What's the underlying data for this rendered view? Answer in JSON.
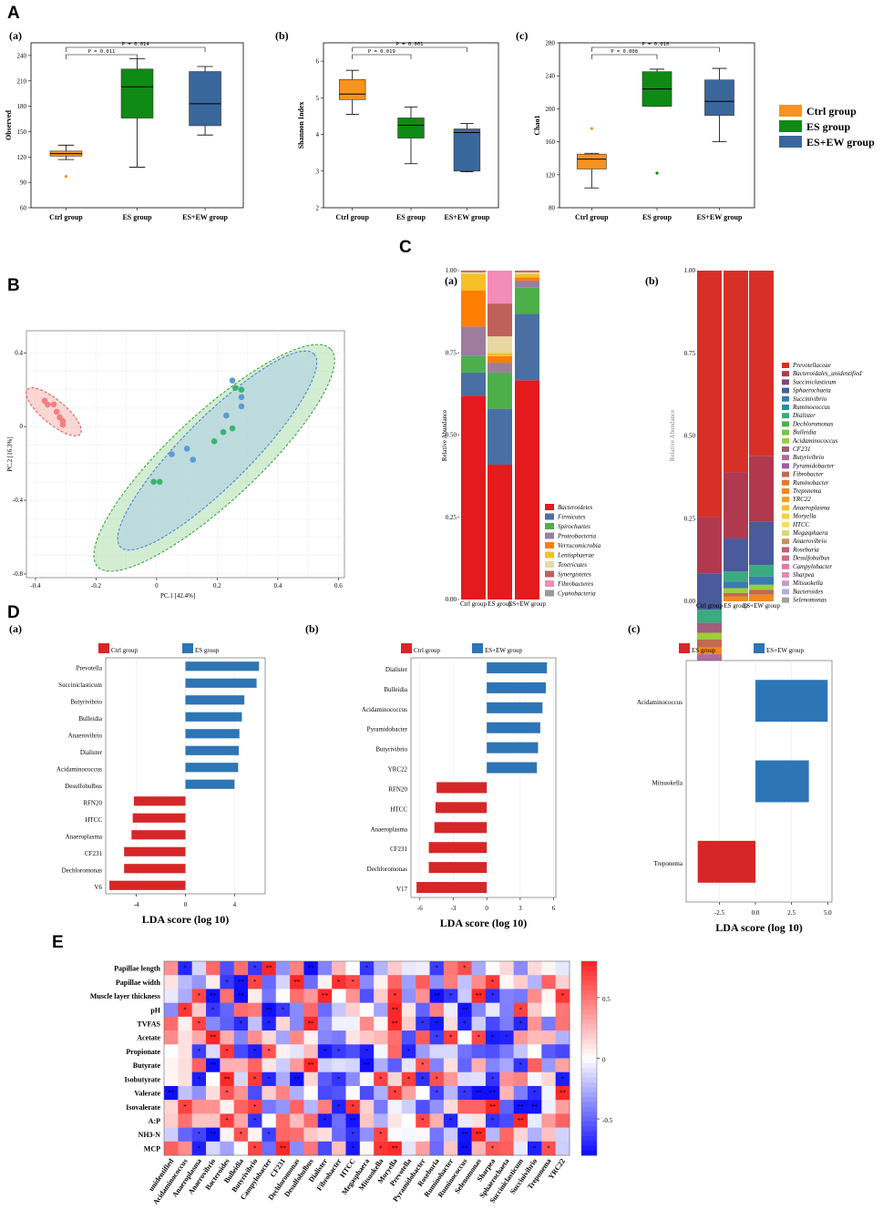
{
  "panels": {
    "A": "A",
    "B": "B",
    "C": "C",
    "D": "D",
    "E": "E"
  },
  "colors": {
    "ctrl": "#f7931e",
    "es": "#0f8a14",
    "esew": "#3a679b",
    "red": "#d62728",
    "blue": "#2e75b6"
  },
  "chart_data": [
    {
      "id": "A-a",
      "type": "box",
      "subtitle": "(a)",
      "ylabel": "Observed",
      "ylim": [
        60,
        255
      ],
      "yticks": [
        60,
        90,
        120,
        150,
        180,
        210,
        240
      ],
      "categories": [
        "Ctrl group",
        "ES group",
        "ES+EW group"
      ],
      "boxes": [
        {
          "min": 117,
          "q1": 121,
          "median": 124,
          "q3": 127,
          "max": 134,
          "outliers": [
            97
          ]
        },
        {
          "min": 108,
          "q1": 166,
          "median": 203,
          "q3": 224,
          "max": 236,
          "outliers": []
        },
        {
          "min": 146,
          "q1": 157,
          "median": 183,
          "q3": 221,
          "max": 227,
          "outliers": []
        }
      ],
      "pvalues": [
        {
          "label": "P = 0.011",
          "from": 0,
          "to": 1
        },
        {
          "label": "P = 0.014",
          "from": 0,
          "to": 2
        }
      ]
    },
    {
      "id": "A-b",
      "type": "box",
      "subtitle": "(b)",
      "ylabel": "Shannon Index",
      "ylim": [
        2,
        6.5
      ],
      "yticks": [
        2,
        3,
        4,
        5,
        6
      ],
      "categories": [
        "Ctrl group",
        "ES group",
        "ES+EW group"
      ],
      "boxes": [
        {
          "min": 4.55,
          "q1": 4.95,
          "median": 5.1,
          "q3": 5.5,
          "max": 5.75,
          "outliers": []
        },
        {
          "min": 3.2,
          "q1": 3.9,
          "median": 4.25,
          "q3": 4.45,
          "max": 4.75,
          "outliers": []
        },
        {
          "min": 2.98,
          "q1": 3.0,
          "median": 4.05,
          "q3": 4.15,
          "max": 4.3,
          "outliers": []
        }
      ],
      "pvalues": [
        {
          "label": "P = 0.019",
          "from": 0,
          "to": 1
        },
        {
          "label": "P = 0.001",
          "from": 0,
          "to": 2
        }
      ]
    },
    {
      "id": "A-c",
      "type": "box",
      "subtitle": "(c)",
      "ylabel": "Chao1",
      "ylim": [
        80,
        280
      ],
      "yticks": [
        80,
        120,
        160,
        200,
        240,
        280
      ],
      "categories": [
        "Ctrl group",
        "ES group",
        "ES+EW group"
      ],
      "boxes": [
        {
          "min": 104,
          "q1": 127,
          "median": 139,
          "q3": 145,
          "max": 146,
          "outliers": [
            176
          ]
        },
        {
          "min": 203,
          "q1": 203,
          "median": 224,
          "q3": 245,
          "max": 248,
          "outliers": [
            122
          ]
        },
        {
          "min": 160,
          "q1": 192,
          "median": 209,
          "q3": 235,
          "max": 249,
          "outliers": []
        }
      ],
      "pvalues": [
        {
          "label": "P = 0.008",
          "from": 0,
          "to": 1
        },
        {
          "label": "P = 0.010",
          "from": 0,
          "to": 2
        }
      ]
    },
    {
      "id": "A-legend",
      "type": "legend",
      "entries": [
        "Ctrl group",
        "ES group",
        "ES+EW group"
      ]
    },
    {
      "id": "B",
      "type": "scatter",
      "xlabel": "PC.1  [42.4%]",
      "ylabel": "PC.2  [16.3%]",
      "xlim": [
        -0.43,
        0.62
      ],
      "ylim": [
        -0.82,
        0.52
      ],
      "xticks": [
        -0.4,
        -0.2,
        0,
        0.2,
        0.4,
        0.6
      ],
      "yticks": [
        -0.8,
        -0.4,
        0,
        0.4
      ],
      "series": [
        {
          "name": "Ctrl group",
          "color": "#f08080",
          "points": [
            [
              -0.37,
              0.14
            ],
            [
              -0.36,
              0.12
            ],
            [
              -0.34,
              0.12
            ],
            [
              -0.33,
              0.08
            ],
            [
              -0.32,
              0.05
            ],
            [
              -0.31,
              0.03
            ],
            [
              -0.31,
              0.01
            ]
          ]
        },
        {
          "name": "ES group",
          "color": "#3cb371",
          "points": [
            [
              -0.01,
              -0.3
            ],
            [
              0.01,
              -0.3
            ],
            [
              0.19,
              -0.08
            ],
            [
              0.22,
              -0.03
            ],
            [
              0.25,
              -0.01
            ],
            [
              0.26,
              0.21
            ],
            [
              0.28,
              0.2
            ]
          ]
        },
        {
          "name": "ES+EW group",
          "color": "#5b9bd5",
          "points": [
            [
              0.05,
              -0.15
            ],
            [
              0.1,
              -0.12
            ],
            [
              0.12,
              -0.18
            ],
            [
              0.23,
              0.06
            ],
            [
              0.25,
              0.25
            ],
            [
              0.28,
              0.16
            ],
            [
              0.28,
              0.11
            ]
          ]
        }
      ]
    },
    {
      "id": "C-a",
      "type": "stacked-bar",
      "subtitle": "(a)",
      "ylabel": "Relative Abundance",
      "yticks": [
        "0.00",
        "0.25",
        "0.50",
        "0.75",
        "1.00"
      ],
      "categories": [
        "Ctrl group",
        "ES group",
        "ES+EW group"
      ],
      "legend": [
        "Bacteroidetes",
        "Firmicutes",
        "Spirochaetes",
        "Proteobacteria",
        "Verrucomicrobia",
        "Lentisphaerae",
        "Tenericutes",
        "Synergistetes",
        "Fibrobacteres",
        "Cyanobacteria"
      ],
      "colors": [
        "#e41a1c",
        "#4a6fa5",
        "#4daf4a",
        "#9e7c9e",
        "#ff7f00",
        "#f6c026",
        "#e8d8a0",
        "#c0605a",
        "#f48cba",
        "#999999"
      ],
      "series": [
        [
          0.62,
          0.41,
          0.66
        ],
        [
          0.07,
          0.17,
          0.2
        ],
        [
          0.05,
          0.11,
          0.08
        ],
        [
          0.09,
          0.03,
          0.02
        ],
        [
          0.11,
          0.02,
          0.01
        ],
        [
          0.05,
          0.01,
          0.01
        ],
        [
          0.005,
          0.05,
          0.005
        ],
        [
          0.005,
          0.1,
          0.005
        ],
        [
          0.0,
          0.1,
          0.0
        ],
        [
          0.0,
          0.0,
          0.0
        ]
      ]
    },
    {
      "id": "C-b",
      "type": "stacked-bar",
      "subtitle": "(b)",
      "ylabel": "Relative Abundance",
      "yticks": [
        "0.00",
        "0.25",
        "0.50",
        "0.75",
        "1.00"
      ],
      "categories": [
        "Ctrl group",
        "ES group",
        "ES+EW group"
      ],
      "legend": [
        "Prevotellaceae",
        "Bacteroidales_unidentified",
        "Succiniclasticum",
        "Sphaerochaeta",
        "Succinivibrio",
        "Ruminococcus",
        "Dialister",
        "Dechloromonas",
        "Bulleidia",
        "Acidaminococcus",
        "CF231",
        "Butyrivibrio",
        "Pyramidobacter",
        "Fibrobacter",
        "Ruminobacter",
        "Treponema",
        "YRC22",
        "Anaeroplasma",
        "Moryella",
        "HTCC",
        "Megasphaera",
        "Anaerovibrio",
        "Roseburia",
        "Desulfobulbus",
        "Campylobacter",
        "Sharpea",
        "Mitsuokella",
        "Bacteroides",
        "Selenomonas"
      ],
      "colors": [
        "#d73027",
        "#b0394f",
        "#7a4a7a",
        "#4a5a9a",
        "#3a7ab0",
        "#2a90a0",
        "#3aaa80",
        "#4daf4a",
        "#7bc24a",
        "#9bcf3a",
        "#a0607a",
        "#b06aa0",
        "#9a5aa0",
        "#c06a50",
        "#e07a30",
        "#f08a20",
        "#f0a020",
        "#f5c030",
        "#f5d040",
        "#f0e060",
        "#d8d870",
        "#c89060",
        "#c06070",
        "#d06a8a",
        "#e07aa0",
        "#e08ab0",
        "#c0a0c0",
        "#b0b0d0",
        "#a0a0a0"
      ],
      "series": [
        [
          0.0,
          0.0,
          0.0
        ]
      ],
      "segments": {
        "Ctrl group": [
          [
            0.745,
            "#d73027"
          ],
          [
            0.17,
            "#b0394f"
          ],
          [
            0.11,
            "#4a5a9a"
          ],
          [
            0.04,
            "#3aaa80"
          ],
          [
            0.03,
            "#a0607a"
          ],
          [
            0.02,
            "#9bcf3a"
          ],
          [
            0.025,
            "#c06a50"
          ],
          [
            0.02,
            "#f08a20"
          ],
          [
            0.02,
            "#b06aa0"
          ],
          [
            0.02,
            "#4daf4a"
          ],
          [
            0.0,
            "#999"
          ]
        ],
        "ES group": [
          [
            0.61,
            "#d73027"
          ],
          [
            0.2,
            "#b0394f"
          ],
          [
            0.1,
            "#4a5a9a"
          ],
          [
            0.03,
            "#3aaa80"
          ],
          [
            0.02,
            "#3a7ab0"
          ],
          [
            0.015,
            "#9bcf3a"
          ],
          [
            0.01,
            "#c06a50"
          ],
          [
            0.015,
            "#f08a20"
          ],
          [
            0.0,
            "#999"
          ]
        ],
        "ES+EW group": [
          [
            0.56,
            "#d73027"
          ],
          [
            0.2,
            "#b0394f"
          ],
          [
            0.13,
            "#4a5a9a"
          ],
          [
            0.035,
            "#3aaa80"
          ],
          [
            0.025,
            "#3a7ab0"
          ],
          [
            0.015,
            "#9bcf3a"
          ],
          [
            0.015,
            "#c06a50"
          ],
          [
            0.02,
            "#f08a20"
          ],
          [
            0.0,
            "#999"
          ]
        ]
      }
    },
    {
      "id": "D-a",
      "type": "hbar",
      "subtitle": "(a)",
      "xlabel": "LDA score (log 10)",
      "xlim": [
        -6.5,
        6.5
      ],
      "xticks": [
        -4,
        0,
        4
      ],
      "legend": [
        "Ctrl group",
        "ES group"
      ],
      "categories": [
        "Prevotella",
        "Succiniclasticum",
        "Butyrivibrio",
        "Bulleidia",
        "Anaerovibrio",
        "Dialister",
        "Acidaminococcus",
        "Desulfobulbus",
        "RFN20",
        "HTCC",
        "Anaeroplasma",
        "CF231",
        "Dechloromonas",
        "V6"
      ],
      "values": [
        6.0,
        5.8,
        4.8,
        4.6,
        4.4,
        4.35,
        4.3,
        4.0,
        -4.2,
        -4.3,
        -4.4,
        -5.0,
        -5.0,
        -6.2
      ]
    },
    {
      "id": "D-b",
      "type": "hbar",
      "subtitle": "(b)",
      "xlabel": "LDA score (log 10)",
      "xlim": [
        -6.8,
        6.2
      ],
      "xticks": [
        -6,
        -3,
        0,
        3,
        6
      ],
      "legend": [
        "Ctrl group",
        "ES+EW group"
      ],
      "categories": [
        "Dialister",
        "Bulleidia",
        "Acidaminococcus",
        "Pyramidobacter",
        "Butyrivibrio",
        "YRC22",
        "RFN20",
        "HTCC",
        "Anaeroplasma",
        "CF231",
        "Dechloromonas",
        "V17"
      ],
      "values": [
        5.4,
        5.3,
        5.0,
        4.8,
        4.6,
        4.5,
        -4.5,
        -4.6,
        -4.7,
        -5.2,
        -5.2,
        -6.3
      ]
    },
    {
      "id": "D-c",
      "type": "hbar",
      "subtitle": "(c)",
      "xlabel": "LDA score (log 10)",
      "xlim": [
        -4.8,
        5.3
      ],
      "xticks": [
        "-2.5",
        "0.0",
        "2.5",
        "5.0"
      ],
      "legend": [
        "ES group",
        "ES+EW group"
      ],
      "categories": [
        "Acidaminococcus",
        "Mitsuokella",
        "Treponema"
      ],
      "values": [
        5.0,
        3.7,
        -4.0
      ]
    },
    {
      "id": "E",
      "type": "heatmap",
      "colorbar": {
        "ticks": [
          "0.5",
          "0",
          "-0.5"
        ],
        "range": [
          -0.8,
          0.8
        ]
      },
      "rows": [
        "Papillae length",
        "Papillae width",
        "Muscle layer thickness",
        "pH",
        "TVFAS",
        "Acetate",
        "Propionate",
        "Butyrate",
        "Isobutyrate",
        "Valerate",
        "Isovalerate",
        "A:P",
        "NH3-N",
        "MCP"
      ],
      "cols": [
        "unidentified",
        "Acidaminococcus",
        "Anaeroplasma",
        "Anaerovibrio",
        "Bacteroides",
        "Bulleidia",
        "Butyrivibrio",
        "Campylobacter",
        "CF231",
        "Dechloromonas",
        "Desulfobulbus",
        "Dialister",
        "Fibrobacter",
        "HTCC",
        "Megasphaera",
        "Mitsuokella",
        "Moryella",
        "Prevotella",
        "Pyramidobacter",
        "Roseburia",
        "Ruminobacter",
        "Ruminococcus",
        "Selenomonas",
        "Sharpea",
        "Sphaerochaeta",
        "Succiniclasticum",
        "Succinivibrio",
        "Treponema",
        "YRC22"
      ]
    }
  ]
}
